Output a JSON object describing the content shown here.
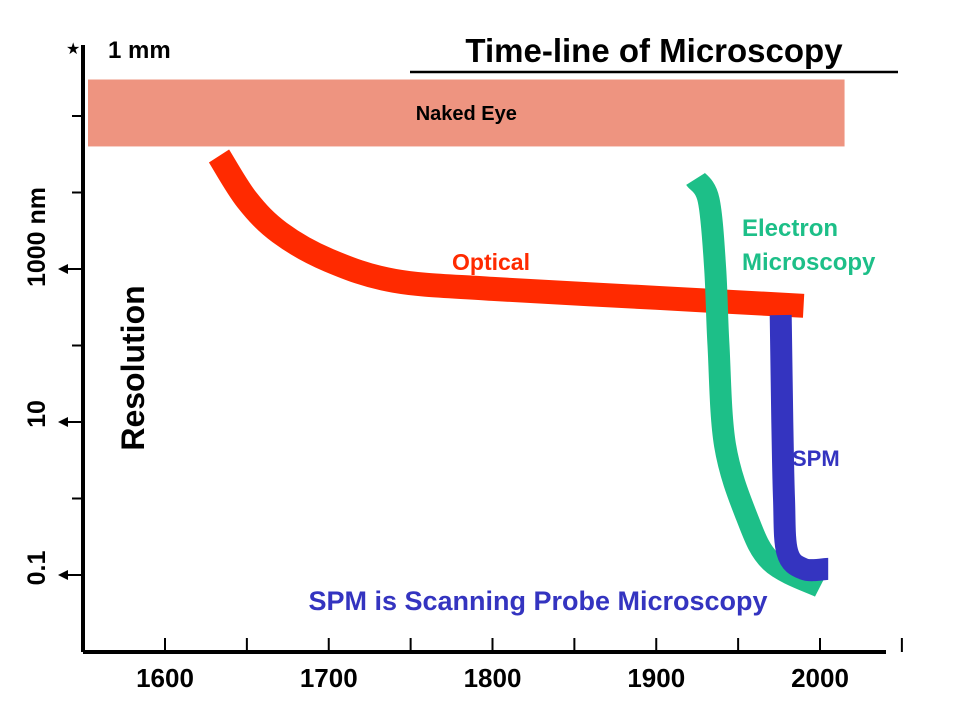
{
  "chart_data": {
    "type": "area",
    "title": "Time-line of Microscopy",
    "ylabel": "Resolution",
    "xlabel": "",
    "footnote": "SPM is Scanning Probe Microscopy",
    "x_ticks": [
      1600,
      1700,
      1800,
      1900,
      2000
    ],
    "y_tick_labels": [
      {
        "label": "1 mm",
        "value_nm": 1000000
      },
      {
        "label": "1000 nm",
        "value_nm": 1000
      },
      {
        "label": "10",
        "value_nm": 10
      },
      {
        "label": "0.1",
        "value_nm": 0.1
      }
    ],
    "y_scale": "log",
    "xlim": [
      1560,
      2050
    ],
    "grid": false,
    "legend": "none",
    "bands": [
      {
        "name": "Naked Eye",
        "x_start": 1560,
        "x_end": 2015,
        "y_top_nm": 300000,
        "y_bottom_nm": 40000,
        "color": "#EE9480"
      }
    ],
    "series": [
      {
        "name": "Optical",
        "color": "#FF2A00",
        "points": [
          [
            1633,
            30000
          ],
          [
            1650,
            8000
          ],
          [
            1670,
            3000
          ],
          [
            1700,
            1300
          ],
          [
            1740,
            700
          ],
          [
            1800,
            550
          ],
          [
            1900,
            420
          ],
          [
            1990,
            330
          ]
        ]
      },
      {
        "name": "Electron Microscopy",
        "color": "#1DBF88",
        "points": [
          [
            1924,
            15000
          ],
          [
            1932,
            8000
          ],
          [
            1936,
            1000
          ],
          [
            1938,
            100
          ],
          [
            1942,
            5
          ],
          [
            1955,
            0.6
          ],
          [
            1970,
            0.15
          ],
          [
            2000,
            0.07
          ]
        ]
      },
      {
        "name": "SPM",
        "color": "#3434C0",
        "points": [
          [
            1976,
            250
          ],
          [
            1977,
            10
          ],
          [
            1978,
            1
          ],
          [
            1980,
            0.2
          ],
          [
            1990,
            0.12
          ],
          [
            2005,
            0.12
          ]
        ]
      }
    ],
    "colors": {
      "axis": "#000000",
      "footnote": "#3434C0"
    }
  }
}
